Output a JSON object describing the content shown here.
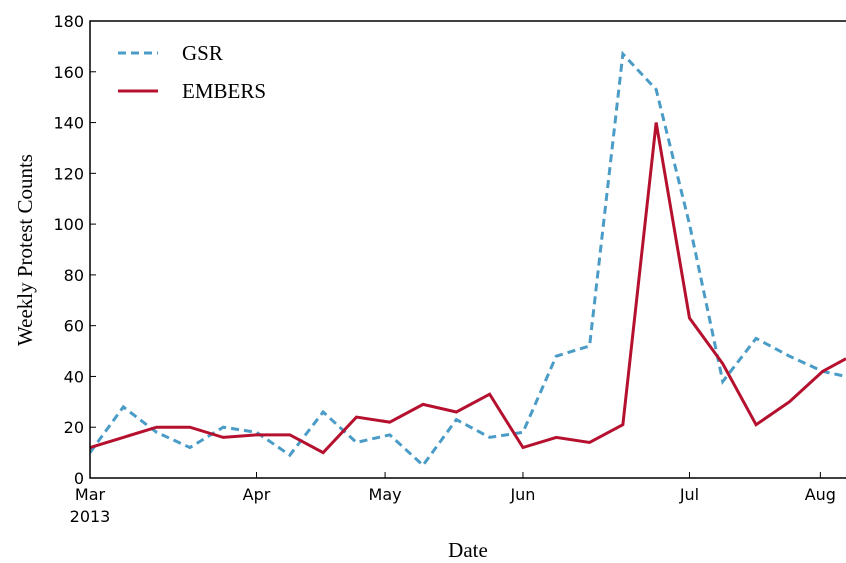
{
  "chart_data": {
    "type": "line",
    "xlabel": "Date",
    "ylabel": "Weekly Protest Counts",
    "x": [
      0,
      1,
      2,
      3,
      4,
      5,
      6,
      7,
      8,
      9,
      10,
      11,
      12,
      13,
      14,
      15,
      16,
      17,
      18,
      19,
      20,
      21,
      22,
      22.7
    ],
    "series": [
      {
        "name": "GSR",
        "color": "#4a9cc7",
        "dashed": true,
        "values": [
          10,
          28,
          18,
          12,
          20,
          18,
          9,
          26,
          14,
          17,
          5,
          23,
          16,
          18,
          48,
          52,
          167,
          153,
          100,
          38,
          55,
          48,
          42,
          40
        ]
      },
      {
        "name": "EMBERS",
        "color": "#b5112f",
        "dashed": false,
        "values": [
          12,
          16,
          20,
          20,
          16,
          17,
          17,
          10,
          24,
          22,
          29,
          26,
          33,
          12,
          16,
          14,
          21,
          140,
          63,
          45,
          21,
          30,
          42,
          47
        ]
      }
    ],
    "xlim": [
      0,
      22.7
    ],
    "xticks": [
      {
        "value": 0,
        "label": "Mar"
      },
      {
        "value": 5,
        "label": "Apr"
      },
      {
        "value": 8.86,
        "label": "May"
      },
      {
        "value": 13,
        "label": "Jun"
      },
      {
        "value": 18,
        "label": "Jul"
      },
      {
        "value": 21.93,
        "label": "Aug"
      }
    ],
    "xticks_sublabel": "2013",
    "ylim": [
      0,
      180
    ],
    "yticks": [
      0,
      20,
      40,
      60,
      80,
      100,
      120,
      140,
      160,
      180
    ],
    "legend": "upper left"
  }
}
